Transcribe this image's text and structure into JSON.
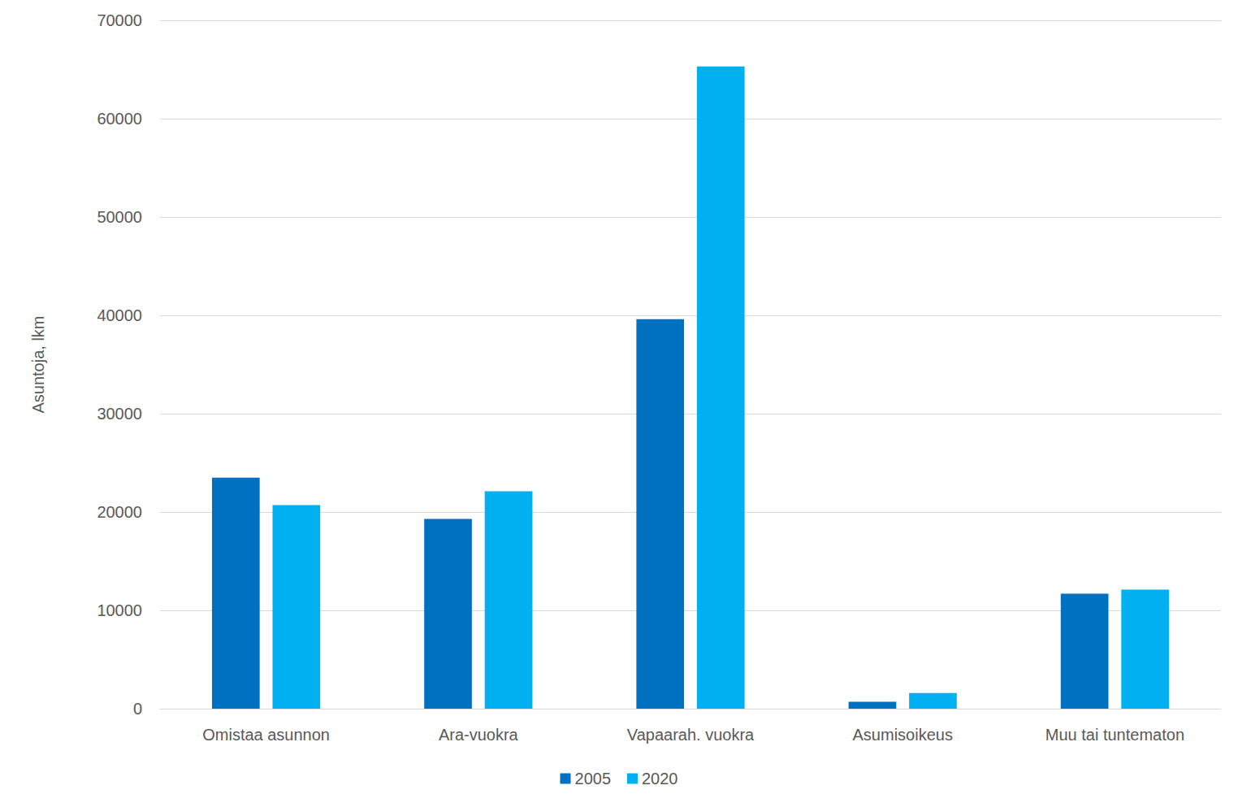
{
  "chart_data": {
    "type": "bar",
    "y_label": "Asuntoja, lkm",
    "categories": [
      "Omistaa asunnon",
      "Ara-vuokra",
      "Vapaarah. vuokra",
      "Asumisoikeus",
      "Muu tai tuntematon"
    ],
    "series": [
      {
        "name": "2005",
        "color": "#0070c0",
        "values": [
          23500,
          19300,
          39600,
          700,
          11700
        ]
      },
      {
        "name": "2020",
        "color": "#00b0f0",
        "values": [
          20700,
          22100,
          65300,
          1600,
          12100
        ]
      }
    ],
    "ylim": [
      0,
      70000
    ],
    "yticks": [
      0,
      10000,
      20000,
      30000,
      40000,
      50000,
      60000,
      70000
    ],
    "grid": true,
    "legend": "bottom"
  }
}
